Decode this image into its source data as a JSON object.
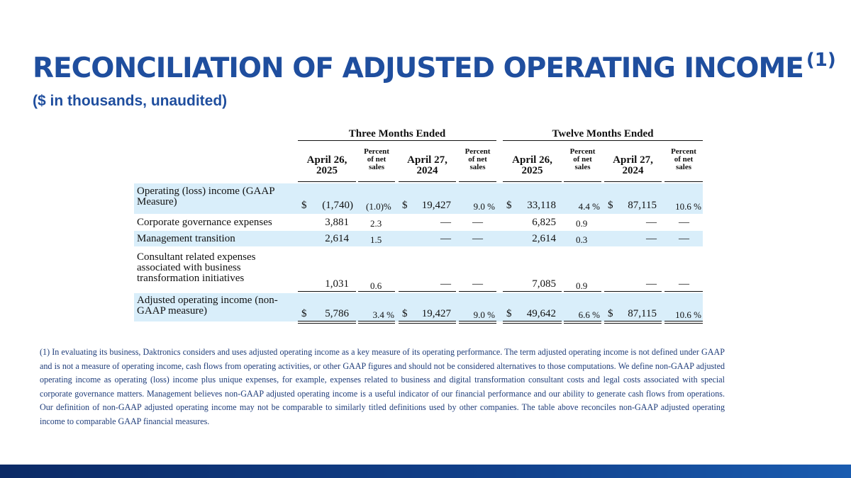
{
  "title": "RECONCILIATION OF ADJUSTED OPERATING INCOME",
  "title_superscript": "(1)",
  "subtitle": "($ in thousands, unaudited)",
  "table": {
    "groups": [
      "Three Months Ended",
      "Twelve Months Ended"
    ],
    "columns": [
      {
        "line1": "April 26,",
        "line2": "2025"
      },
      {
        "line1": "Percent",
        "line2": "of net",
        "line3": "sales"
      },
      {
        "line1": "April 27,",
        "line2": "2024"
      },
      {
        "line1": "Percent",
        "line2": "of net",
        "line3": "sales"
      },
      {
        "line1": "April 26,",
        "line2": "2025"
      },
      {
        "line1": "Percent",
        "line2": "of net",
        "line3": "sales"
      },
      {
        "line1": "April 27,",
        "line2": "2024"
      },
      {
        "line1": "Percent",
        "line2": "of net",
        "line3": "sales"
      }
    ],
    "rows": [
      {
        "label_lines": [
          "Operating (loss) income (GAAP",
          "Measure)"
        ],
        "values": [
          "(1,740)",
          "(1.0)%",
          "19,427",
          "9.0 %",
          "33,118",
          "4.4 %",
          "87,115",
          "10.6 %"
        ],
        "dollar": "$"
      },
      {
        "label_lines": [
          "Corporate governance expenses"
        ],
        "values": [
          "3,881",
          "2.3",
          "—",
          "—",
          "6,825",
          "0.9",
          "—",
          "—"
        ]
      },
      {
        "label_lines": [
          "Management transition"
        ],
        "values": [
          "2,614",
          "1.5",
          "—",
          "—",
          "2,614",
          "0.3",
          "—",
          "—"
        ]
      },
      {
        "label_lines": [
          "Consultant related expenses",
          "associated with business",
          "transformation initiatives"
        ],
        "values": [
          "1,031",
          "0.6",
          "—",
          "—",
          "7,085",
          "0.9",
          "—",
          "—"
        ]
      },
      {
        "label_lines": [
          "Adjusted operating income (non-",
          "GAAP measure)"
        ],
        "values": [
          "5,786",
          "3.4 %",
          "19,427",
          "9.0 %",
          "49,642",
          "6.6 %",
          "87,115",
          "10.6 %"
        ],
        "dollar": "$"
      }
    ]
  },
  "footnote": "(1) In evaluating its business, Daktronics considers and uses adjusted operating income as a key measure of its operating performance. The term adjusted operating income is not defined under GAAP and is not a measure of operating income, cash flows from operating activities, or other GAAP figures and should not be considered alternatives to those computations. We define non-GAAP adjusted operating income as operating (loss) income plus unique expenses, for example, expenses related to business and digital transformation consultant costs and legal costs associated with special corporate governance matters. Management believes non-GAAP adjusted operating income is a useful indicator of our financial performance and our ability to generate cash flows from operations. Our definition of non-GAAP adjusted operating income may not be comparable to similarly titled definitions used by other companies. The table above reconciles non-GAAP adjusted operating income to comparable GAAP financial measures.",
  "colors": {
    "title": "#1f4e9e",
    "band": "#d9eefa",
    "footnote": "#1f3d7a",
    "bottom_bar": "#11418c"
  }
}
